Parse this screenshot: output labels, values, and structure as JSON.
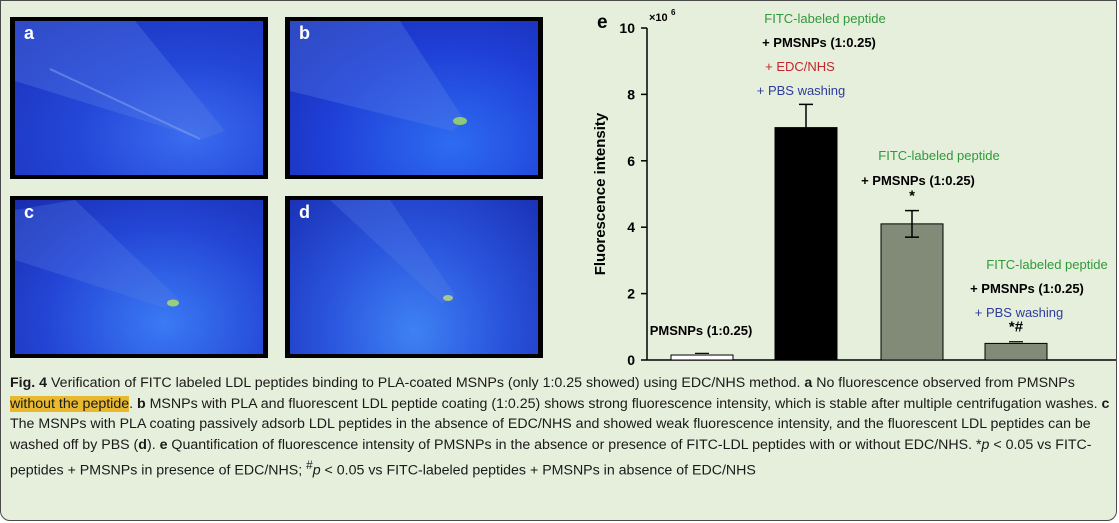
{
  "panels": [
    {
      "letter": "a"
    },
    {
      "letter": "b"
    },
    {
      "letter": "c"
    },
    {
      "letter": "d"
    }
  ],
  "chart_data": {
    "type": "bar",
    "panel_letter": "e",
    "categories": [
      "PMSNPs (1:0.25)",
      "FITC-labeled peptide + PMSNPs (1:0.25) + EDC/NHS + PBS washing",
      "FITC-labeled peptide + PMSNPs (1:0.25)",
      "FITC-labeled peptide + PMSNPs (1:0.25) + PBS washing"
    ],
    "values": [
      0.15,
      7.0,
      4.1,
      0.5
    ],
    "errors": [
      0.05,
      0.7,
      0.4,
      0.05
    ],
    "significance": [
      "",
      "",
      "*",
      "*#"
    ],
    "bar_colors": [
      "#ffffff",
      "#000000",
      "#828a78",
      "#828a78"
    ],
    "ylabel": "Fluorescence intensity",
    "y_multiplier": "×10",
    "y_multiplier_exp": "6",
    "ylim": [
      0,
      10
    ],
    "yticks": [
      "0",
      "2",
      "4",
      "6",
      "8",
      "10"
    ],
    "ytick_values": [
      0,
      2,
      4,
      6,
      8,
      10
    ],
    "bar_labels": [
      [
        {
          "text": "PMSNPs (1:0.25)",
          "color": "#000000"
        }
      ],
      [
        {
          "text": "FITC-labeled peptide",
          "color": "#2f9a3a"
        },
        {
          "text": "+ PMSNPs (1:0.25)",
          "color": "#000000"
        },
        {
          "text": "+ EDC/NHS",
          "color": "#c0282d"
        },
        {
          "text": "+ PBS washing",
          "color": "#2e3c9a"
        }
      ],
      [
        {
          "text": "FITC-labeled peptide",
          "color": "#2f9a3a"
        },
        {
          "text": "+ PMSNPs (1:0.25)",
          "color": "#000000"
        }
      ],
      [
        {
          "text": "FITC-labeled peptide",
          "color": "#2f9a3a"
        },
        {
          "text": "+ PMSNPs (1:0.25)",
          "color": "#000000"
        },
        {
          "text": "+ PBS washing",
          "color": "#2e3c9a"
        }
      ]
    ]
  },
  "caption": {
    "fig_label": "Fig. 4",
    "t1": "  Verification of FITC labeled LDL peptides binding to PLA-coated MSNPs (only 1:0.25 showed) using EDC/NHS method. ",
    "a": "a",
    "t2": " No fluorescence observed from PMSNPs ",
    "highlight": "without the peptide",
    "t3": ". ",
    "b": "b",
    "t4": " MSNPs with PLA and fluorescent LDL peptide coating (1:0.25) shows strong fluorescence intensity, which is stable after multiple centrifugation washes. ",
    "c": "c",
    "t5": " The MSNPs with PLA coating passively adsorb LDL peptides in the absence of EDC/NHS and showed weak fluorescence intensity, and the fluorescent LDL peptides can be washed off by PBS (",
    "d": "d",
    "t6": "). ",
    "e": "e",
    "t7": " Quantification of fluorescence intensity of PMSNPs in the absence or presence of FITC-LDL peptides with or without EDC/NHS. *",
    "p1": "p",
    "t8": " < 0.05 vs FITC-peptides + PMSNPs in presence of EDC/NHS; ",
    "hash": "#",
    "p2": "p",
    "t9": " < 0.05 vs FITC-labeled peptides + PMSNPs in absence of EDC/NHS"
  }
}
